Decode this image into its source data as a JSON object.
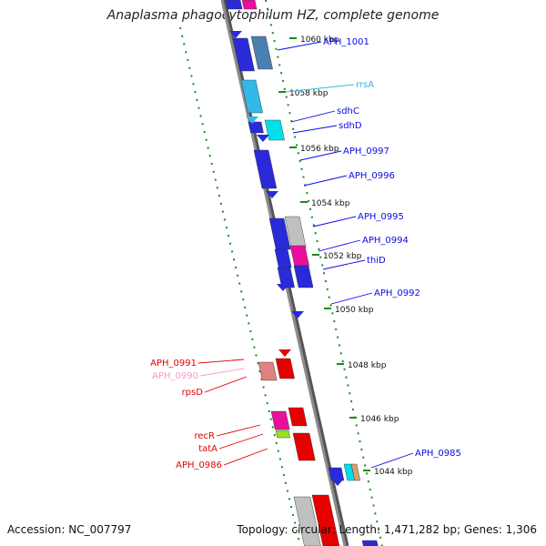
{
  "title": "Anaplasma phagocytophilum HZ, complete genome",
  "accession": "Accession: NC_007797",
  "summary": "Topology: circular; Length: 1,471,282 bp; Genes: 1,306",
  "colors": {
    "backbone": "#8c8c8c",
    "dots": "#1a8a1a",
    "blue_gene": "#0a0ae6",
    "red_gene": "#e60000",
    "cds_blue": "#2a2ad8",
    "steel": "#4a7fb0",
    "rrna": "#33b8e8",
    "cyan": "#00e0e8",
    "magenta": "#e8109a",
    "grey": "#c0c0c0",
    "salmon": "#e08080",
    "pink": "#f59ac8",
    "lime": "#9be020",
    "tan": "#d6a070"
  },
  "ruler": [
    "1060 kbp",
    "1058 kbp",
    "1056 kbp",
    "1054 kbp",
    "1052 kbp",
    "1050 kbp",
    "1048 kbp",
    "1046 kbp",
    "1044 kbp"
  ],
  "labels": [
    {
      "text": "APH_1001",
      "kind": "blue_gene"
    },
    {
      "text": "rrsA",
      "kind": "rrna"
    },
    {
      "text": "sdhC",
      "kind": "blue_gene"
    },
    {
      "text": "sdhD",
      "kind": "blue_gene"
    },
    {
      "text": "APH_0997",
      "kind": "blue_gene"
    },
    {
      "text": "APH_0996",
      "kind": "blue_gene"
    },
    {
      "text": "APH_0995",
      "kind": "blue_gene"
    },
    {
      "text": "APH_0994",
      "kind": "blue_gene"
    },
    {
      "text": "thiD",
      "kind": "blue_gene"
    },
    {
      "text": "APH_0992",
      "kind": "blue_gene"
    },
    {
      "text": "APH_0985",
      "kind": "blue_gene"
    },
    {
      "text": "APH_0991",
      "kind": "red_gene"
    },
    {
      "text": "APH_0990",
      "kind": "pink"
    },
    {
      "text": "rpsD",
      "kind": "red_gene"
    },
    {
      "text": "recR",
      "kind": "red_gene"
    },
    {
      "text": "tatA",
      "kind": "red_gene"
    },
    {
      "text": "APH_0986",
      "kind": "red_gene"
    }
  ]
}
